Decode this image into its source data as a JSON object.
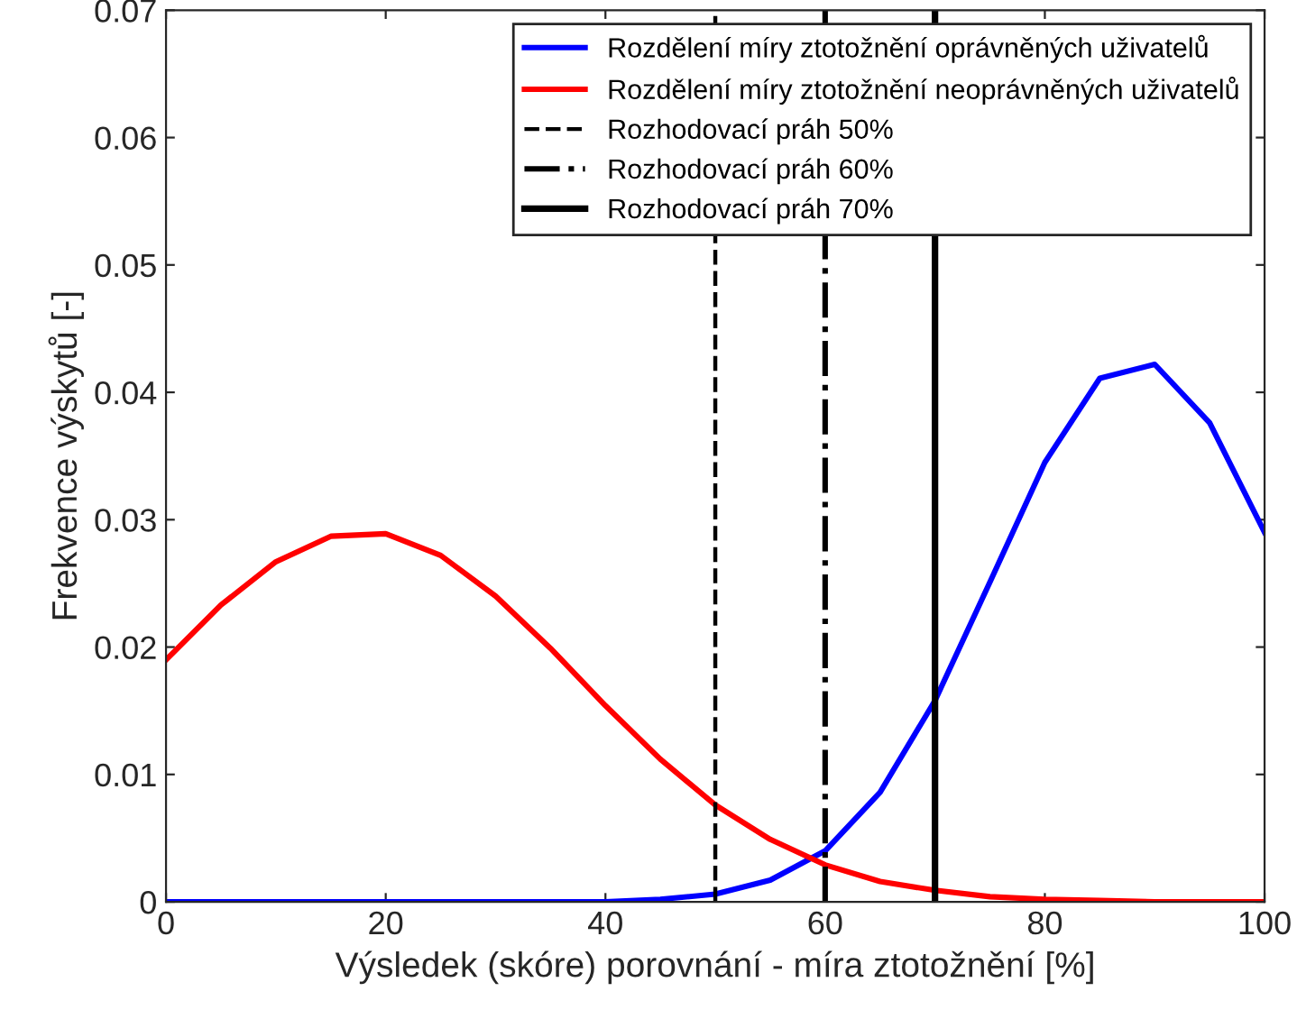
{
  "chart_data": {
    "type": "line",
    "xlabel": "Výsledek (skóre) porovnání - míra ztotožnění [%]",
    "ylabel": "Frekvence výskytů [-]",
    "x": [
      0,
      5,
      10,
      15,
      20,
      25,
      30,
      35,
      40,
      45,
      50,
      55,
      60,
      65,
      70,
      75,
      80,
      85,
      90,
      95,
      100
    ],
    "series": [
      {
        "name": "Rozdělení míry ztotožnění oprávněných uživatelů",
        "color": "#0000ff",
        "values": [
          0,
          0,
          0,
          0,
          0,
          0,
          0,
          0,
          0,
          0.0002,
          0.0006,
          0.0017,
          0.004,
          0.0086,
          0.0158,
          0.0251,
          0.0345,
          0.0411,
          0.0422,
          0.0376,
          0.029
        ]
      },
      {
        "name": "Rozdělení míry ztotožnění neoprávněných uživatelů",
        "color": "#ff0000",
        "values": [
          0.019,
          0.0233,
          0.0267,
          0.0287,
          0.0289,
          0.0272,
          0.024,
          0.0199,
          0.0154,
          0.0112,
          0.0076,
          0.0049,
          0.0029,
          0.0016,
          0.0009,
          0.0004,
          0.0002,
          0.0001,
          0,
          0,
          0
        ]
      }
    ],
    "ref_lines": [
      {
        "axis": "x",
        "value": 50,
        "label": "Rozhodovací práh 50%",
        "color": "#000000",
        "line_style": "dashed"
      },
      {
        "axis": "x",
        "value": 60,
        "label": "Rozhodovací práh 60%",
        "color": "#000000",
        "line_style": "dashdot"
      },
      {
        "axis": "x",
        "value": 70,
        "label": "Rozhodovací práh 70%",
        "color": "#000000",
        "line_style": "solid"
      }
    ],
    "xlim": [
      0,
      100
    ],
    "xticks": [
      0,
      20,
      40,
      60,
      80,
      100
    ],
    "ylim": [
      0,
      0.07
    ],
    "yticks": [
      0,
      0.01,
      0.02,
      0.03,
      0.04,
      0.05,
      0.06,
      0.07
    ],
    "grid": false,
    "legend": "top right",
    "marker": "none",
    "line_style": "solid"
  }
}
